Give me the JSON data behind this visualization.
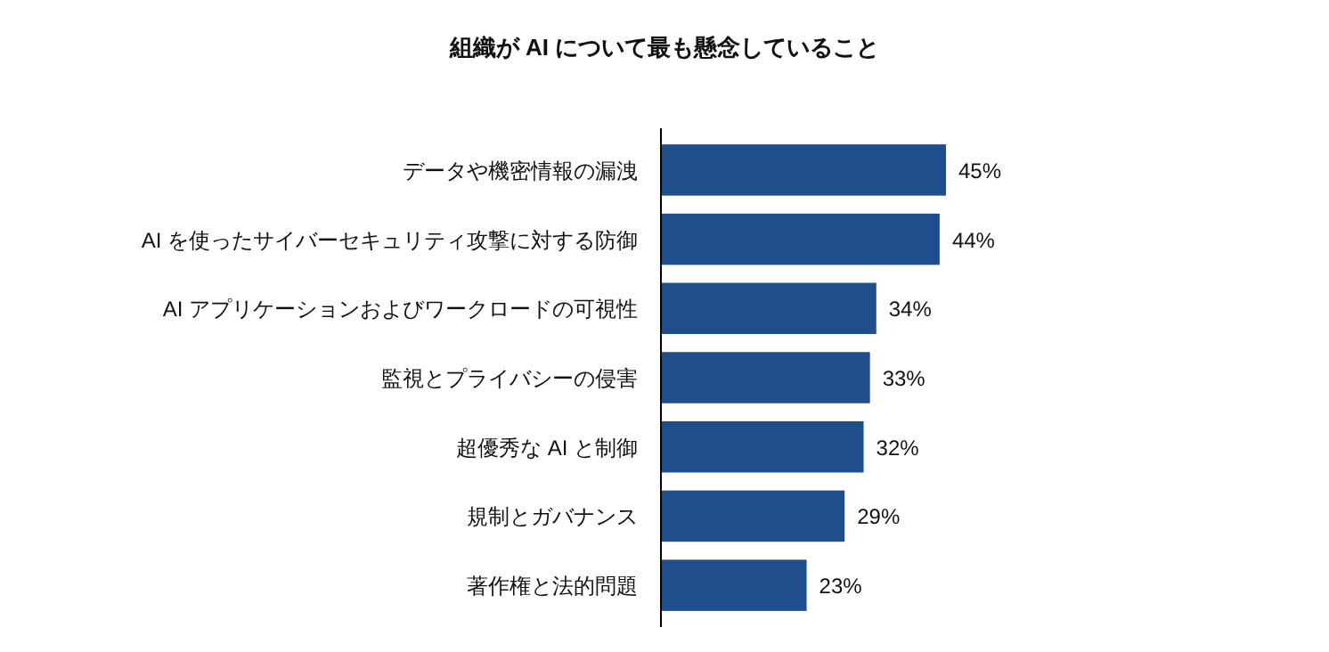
{
  "chart_data": {
    "type": "bar",
    "orientation": "horizontal",
    "title": "組織が AI について最も懸念していること",
    "categories": [
      "データや機密情報の漏洩",
      "AI を使ったサイバーセキュリティ攻撃に対する防御",
      "AI アプリケーションおよびワークロードの可視性",
      "監視とプライバシーの侵害",
      "超優秀な AI と制御",
      "規制とガバナンス",
      "著作権と法的問題"
    ],
    "values": [
      45,
      44,
      34,
      33,
      32,
      29,
      23
    ],
    "value_labels": [
      "45%",
      "44%",
      "34%",
      "33%",
      "32%",
      "29%",
      "23%"
    ],
    "color": "#1f4e8c"
  }
}
